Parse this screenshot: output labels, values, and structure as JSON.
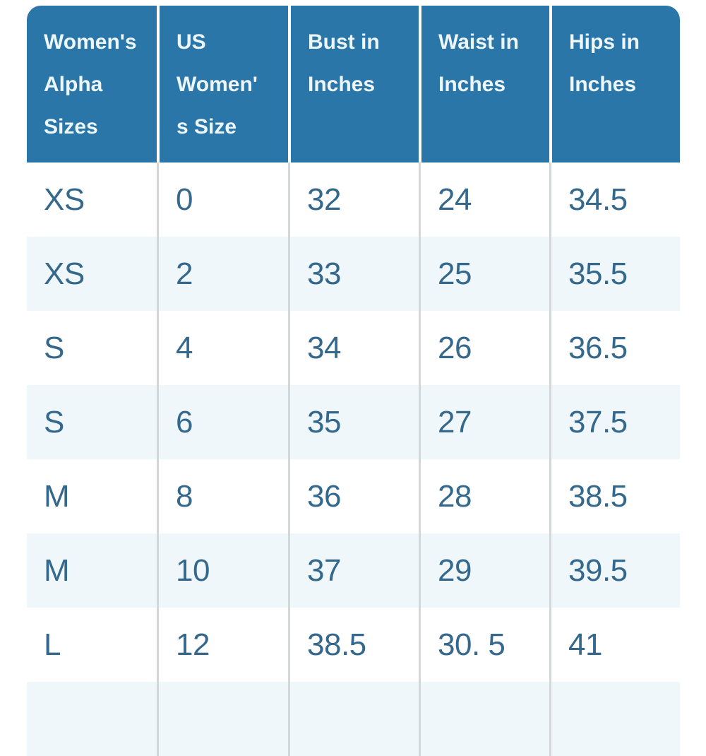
{
  "chart_data": {
    "type": "table",
    "columns": [
      "Women's Alpha Sizes",
      "US Women's Size",
      "Bust in Inches",
      "Waist in Inches",
      "Hips in Inches"
    ],
    "header_display": [
      "Women's\nAlpha\nSizes",
      "US\nWomen'\ns Size",
      "Bust in\nInches",
      "Waist in\nInches",
      "Hips in\nInches"
    ],
    "rows": [
      [
        "XS",
        "0",
        "32",
        "24",
        "34.5"
      ],
      [
        "XS",
        "2",
        "33",
        "25",
        "35.5"
      ],
      [
        "S",
        "4",
        "34",
        "26",
        "36.5"
      ],
      [
        "S",
        "6",
        "35",
        "27",
        "37.5"
      ],
      [
        "M",
        "8",
        "36",
        "28",
        "38.5"
      ],
      [
        "M",
        "10",
        "37",
        "29",
        "39.5"
      ],
      [
        "L",
        "12",
        "38.5",
        "30. 5",
        "41"
      ]
    ],
    "layout_hints": {
      "striped": true,
      "partial_row_clipped_at_bottom": true
    }
  },
  "colors": {
    "header_bg": "#2b76a8",
    "header_text": "#ecf6fb",
    "body_text": "#35688d",
    "row_bg": "#ffffff",
    "row_alt_bg": "#f0f7fa",
    "header_divider": "#ffffff",
    "body_divider": "#d3d7da"
  }
}
